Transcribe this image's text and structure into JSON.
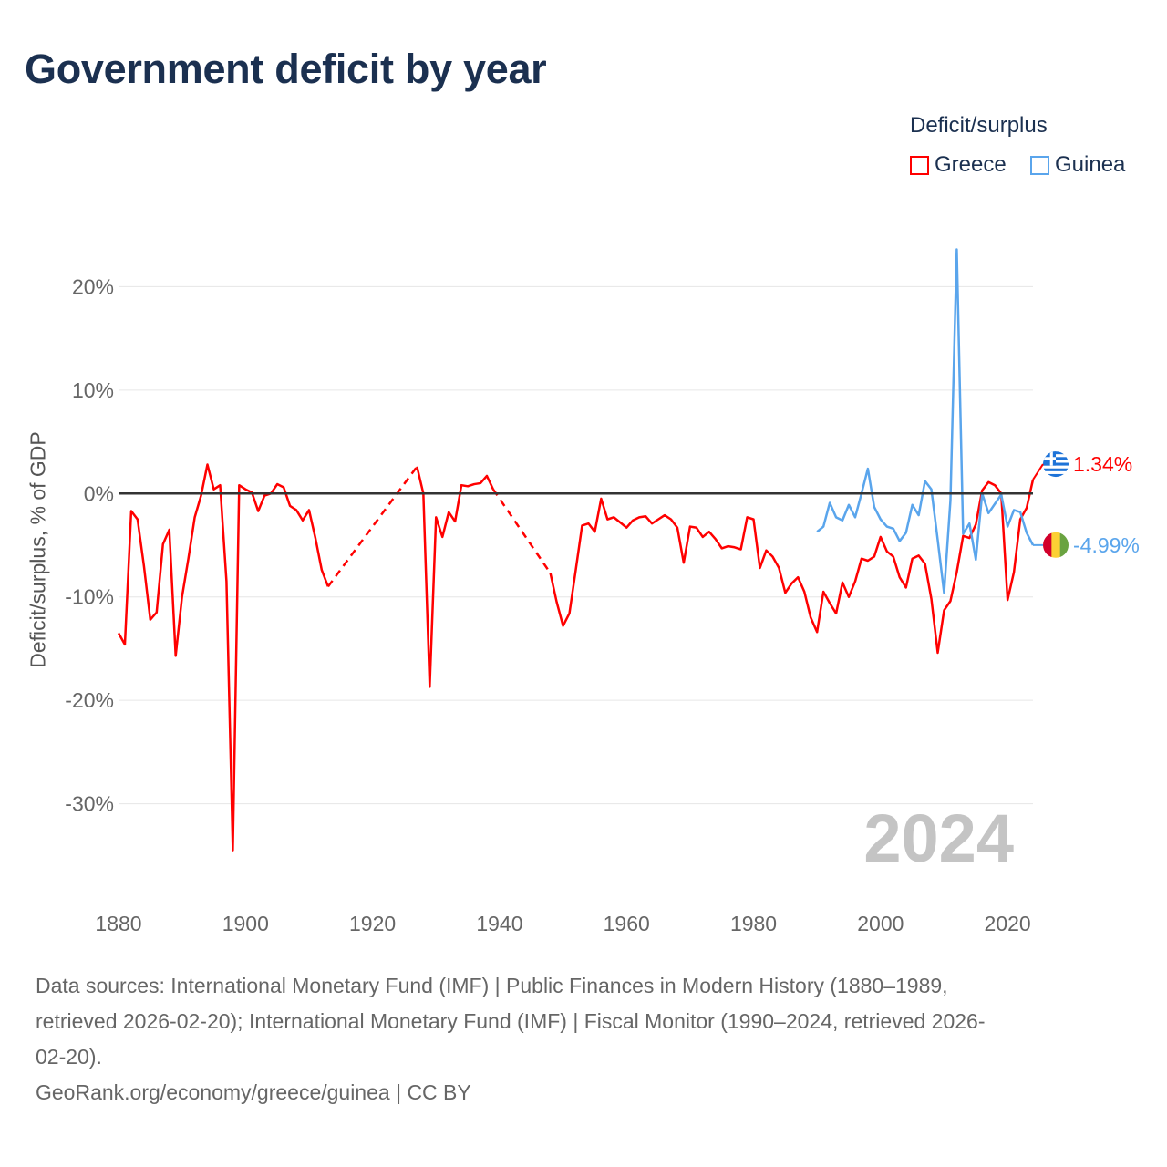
{
  "title": "Government deficit by year",
  "legend": {
    "title": "Deficit/surplus",
    "items": [
      {
        "label": "Greece",
        "color": "#ff0000"
      },
      {
        "label": "Guinea",
        "color": "#5aa5ec"
      }
    ]
  },
  "footer": {
    "lines": [
      "Data sources: International Monetary Fund (IMF) | Public Finances in Modern History (1880–1989,",
      "retrieved 2026-02-20); International Monetary Fund (IMF) | Fiscal Monitor (1990–2024, retrieved 2026-",
      "02-20).",
      "GeoRank.org/economy/greece/guinea | CC BY"
    ]
  },
  "chart_data": {
    "type": "line",
    "title": "Government deficit by year",
    "xlabel": "",
    "ylabel": "Deficit/surplus, % of GDP",
    "xlim": [
      1880,
      2024
    ],
    "ylim": [
      -38.5,
      25.5
    ],
    "xticks": [
      1880,
      1900,
      1920,
      1940,
      1960,
      1980,
      2000,
      2020
    ],
    "yticks": [
      20,
      10,
      0,
      -10,
      -20,
      -30
    ],
    "ytick_labels": [
      "20%",
      "10%",
      "0%",
      "-10%",
      "-20%",
      "-30%"
    ],
    "grid": true,
    "legend_position": "top-right",
    "year_label": "2024",
    "series": [
      {
        "name": "Greece",
        "color": "#ff0000",
        "x_start": 1880,
        "end_label": "1.34%",
        "flag": "greece-flag",
        "values": [
          -13.5,
          -14.6,
          -1.7,
          -2.5,
          -7,
          -12.2,
          -11.5,
          -4.9,
          -3.5,
          -15.7,
          -10,
          -6.3,
          -2.3,
          -0.2,
          2.8,
          0.4,
          0.8,
          -8.5,
          -34.5,
          0.8,
          0.4,
          0.1,
          -1.7,
          -0.2,
          0,
          0.9,
          0.6,
          -1.2,
          -1.6,
          -2.6,
          -1.6,
          -4.3,
          -7.4,
          -9.0,
          null,
          null,
          null,
          null,
          null,
          null,
          null,
          null,
          null,
          null,
          null,
          null,
          null,
          2.6,
          0,
          -18.7,
          -2.3,
          -4.2,
          -1.8,
          -2.7,
          0.8,
          0.7,
          0.9,
          1.0,
          1.7,
          0.4,
          null,
          null,
          null,
          null,
          null,
          null,
          null,
          null,
          -7.7,
          -10.5,
          -12.8,
          -11.6,
          -7.4,
          -3.1,
          -2.9,
          -3.7,
          -0.5,
          -2.5,
          -2.3,
          -2.8,
          -3.3,
          -2.6,
          -2.3,
          -2.2,
          -2.9,
          -2.5,
          -2.1,
          -2.5,
          -3.3,
          -6.7,
          -3.2,
          -3.3,
          -4.2,
          -3.7,
          -4.4,
          -5.3,
          -5.1,
          -5.2,
          -5.4,
          -2.3,
          -2.5,
          -7.2,
          -5.5,
          -6.1,
          -7.2,
          -9.6,
          -8.7,
          -8.1,
          -9.5,
          -12,
          -13.4,
          -9.5,
          -10.6,
          -11.6,
          -8.6,
          -10,
          -8.5,
          -6.3,
          -6.5,
          -6.1,
          -4.2,
          -5.6,
          -6.1,
          -8.1,
          -9.1,
          -6.3,
          -6.0,
          -6.8,
          -10.2,
          -15.4,
          -11.3,
          -10.4,
          -7.6,
          -4.1,
          -4.3,
          -3.0,
          0.3,
          1.1,
          0.8,
          0,
          -10.3,
          -7.6,
          -2.5,
          -1.4,
          1.34
        ]
      },
      {
        "name": "Guinea",
        "color": "#5aa5ec",
        "x_start": 1990,
        "end_label": "-4.99%",
        "flag": "guinea-flag",
        "values": [
          -3.7,
          -3.2,
          -0.9,
          -2.3,
          -2.6,
          -1.1,
          -2.3,
          0,
          2.4,
          -1.3,
          -2.5,
          -3.2,
          -3.4,
          -4.6,
          -3.8,
          -1.1,
          -2.1,
          1.2,
          0.4,
          -4.5,
          -9.6,
          -0.7,
          23.6,
          -3.9,
          -2.9,
          -6.4,
          0,
          -1.9,
          -1.0,
          -0.1,
          -3.2,
          -1.6,
          -1.8,
          -3.8,
          -4.99
        ]
      }
    ]
  }
}
